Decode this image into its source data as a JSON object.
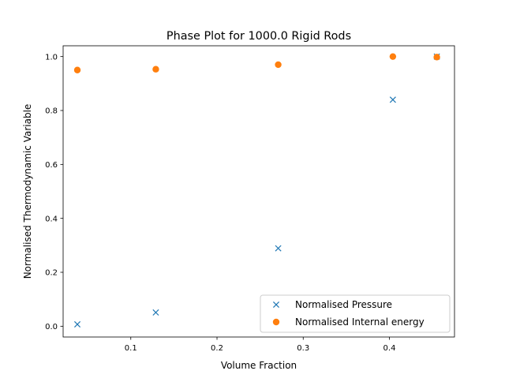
{
  "chart_data": {
    "type": "scatter",
    "title": "Phase Plot for 1000.0 Rigid Rods",
    "xlabel": "Volume Fraction",
    "ylabel": "Normalised Thermodynamic Variable",
    "xlim": [
      0.0215,
      0.4755
    ],
    "ylim": [
      -0.04,
      1.04
    ],
    "xticks": [
      0.1,
      0.2,
      0.3,
      0.4
    ],
    "xtick_labels": [
      "0.1",
      "0.2",
      "0.3",
      "0.4"
    ],
    "yticks": [
      0.0,
      0.2,
      0.4,
      0.6,
      0.8,
      1.0
    ],
    "ytick_labels": [
      "0.0",
      "0.2",
      "0.4",
      "0.6",
      "0.8",
      "1.0"
    ],
    "grid": false,
    "legend_position": "lower-right",
    "series": [
      {
        "name": "Normalised Pressure",
        "marker": "x",
        "color": "#1f77b4",
        "x": [
          0.038,
          0.129,
          0.271,
          0.404,
          0.455
        ],
        "y": [
          0.007,
          0.051,
          0.289,
          0.84,
          1.0
        ]
      },
      {
        "name": "Normalised Internal energy",
        "marker": "o",
        "color": "#ff7f0e",
        "x": [
          0.038,
          0.129,
          0.271,
          0.404,
          0.455
        ],
        "y": [
          0.95,
          0.953,
          0.97,
          1.0,
          0.998
        ]
      }
    ]
  }
}
